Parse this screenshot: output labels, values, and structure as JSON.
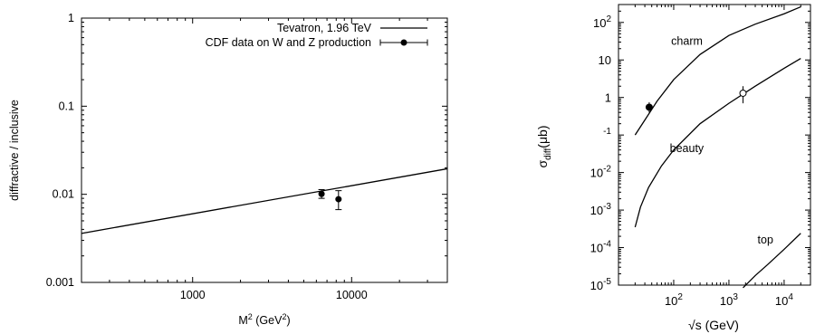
{
  "chart_data": [
    {
      "type": "line",
      "xscale": "log",
      "yscale": "log",
      "xlim": [
        200,
        40000
      ],
      "ylim": [
        0.001,
        1
      ],
      "xlabel": "M",
      "xlabel_sup": "2",
      "xlabel_unit_open": " (GeV",
      "xlabel_unit_sup": "2",
      "xlabel_unit_close": ")",
      "ylabel": "diffractive / inclusive",
      "xticks": [
        {
          "value": 1000,
          "label": "1000"
        },
        {
          "value": 10000,
          "label": "10000"
        }
      ],
      "yticks": [
        {
          "value": 1,
          "label": "1"
        },
        {
          "value": 0.1,
          "label": "0.1"
        },
        {
          "value": 0.01,
          "label": "0.01"
        },
        {
          "value": 0.001,
          "label": "0.001"
        }
      ],
      "legend_position": "top-right",
      "series": [
        {
          "name": "Tevatron, 1.96 TeV",
          "kind": "line",
          "points": [
            [
              200,
              0.0036
            ],
            [
              40000,
              0.0195
            ]
          ]
        },
        {
          "name": "CDF data on W and Z production",
          "kind": "points_with_errors",
          "points": [
            {
              "x": 6470,
              "y": 0.0101,
              "ylo": 0.009,
              "yhi": 0.0113
            },
            {
              "x": 8270,
              "y": 0.0088,
              "ylo": 0.0067,
              "yhi": 0.011
            }
          ]
        }
      ]
    },
    {
      "type": "line",
      "xscale": "log",
      "yscale": "log",
      "xlim": [
        10,
        30000
      ],
      "ylim": [
        1e-05,
        300
      ],
      "xlabel": "√s (GeV)",
      "ylabel": "σ",
      "ylabel_sub": "diff",
      "ylabel_unit": "(μb)",
      "xticks": [
        {
          "value": 100,
          "base": "10",
          "exp": "2"
        },
        {
          "value": 1000,
          "base": "10",
          "exp": "3"
        },
        {
          "value": 10000,
          "base": "10",
          "exp": "4"
        }
      ],
      "yticks": [
        {
          "value": 100,
          "base": "10",
          "exp": "2"
        },
        {
          "value": 10,
          "base": "10",
          "exp": ""
        },
        {
          "value": 1,
          "base": "1",
          "exp": ""
        },
        {
          "value": 0.1,
          "base": "",
          "exp": "-1"
        },
        {
          "value": 0.01,
          "base": "10",
          "exp": "-2"
        },
        {
          "value": 0.001,
          "base": "10",
          "exp": "-3"
        },
        {
          "value": 0.0001,
          "base": "10",
          "exp": "-4"
        },
        {
          "value": 1e-05,
          "base": "10",
          "exp": "-5"
        }
      ],
      "series": [
        {
          "name": "charm",
          "label_at": [
            90,
            25
          ],
          "points": [
            [
              20,
              0.1
            ],
            [
              30,
              0.25
            ],
            [
              50,
              0.8
            ],
            [
              100,
              3
            ],
            [
              300,
              14
            ],
            [
              1000,
              45
            ],
            [
              3000,
              90
            ],
            [
              10000,
              170
            ],
            [
              20000,
              260
            ]
          ]
        },
        {
          "name": "beauty",
          "label_at": [
            85,
            0.035
          ],
          "points": [
            [
              20,
              0.00035
            ],
            [
              25,
              0.0012
            ],
            [
              35,
              0.004
            ],
            [
              60,
              0.015
            ],
            [
              100,
              0.04
            ],
            [
              300,
              0.2
            ],
            [
              1000,
              0.7
            ],
            [
              3000,
              2
            ],
            [
              10000,
              6
            ],
            [
              20000,
              11
            ]
          ]
        },
        {
          "name": "top",
          "label_at": [
            3300,
            0.00013
          ],
          "points": [
            [
              1800,
              8.5e-06
            ],
            [
              3000,
              1.8e-05
            ],
            [
              5000,
              3.5e-05
            ],
            [
              10000,
              9e-05
            ],
            [
              20000,
              0.00024
            ]
          ]
        }
      ],
      "data_points": [
        {
          "x": 36,
          "y": 0.55,
          "ylo": 0.4,
          "yhi": 0.75,
          "filled": true
        },
        {
          "x": 1800,
          "y": 1.3,
          "ylo": 0.7,
          "yhi": 2.0,
          "filled": false
        }
      ]
    }
  ]
}
